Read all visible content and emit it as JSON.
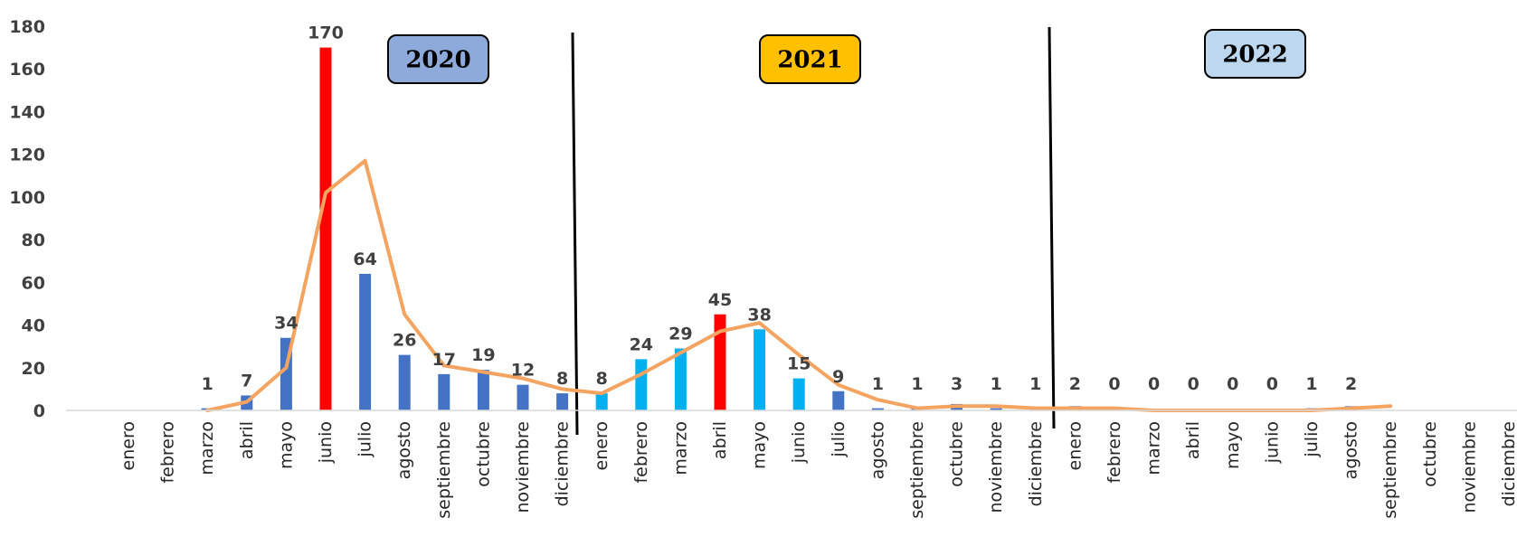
{
  "chart_data": {
    "type": "bar",
    "ylim": [
      0,
      180
    ],
    "yticks": [
      0,
      20,
      40,
      60,
      80,
      100,
      120,
      140,
      160,
      180
    ],
    "categories": [
      "enero",
      "febrero",
      "marzo",
      "abril",
      "mayo",
      "junio",
      "julio",
      "agosto",
      "septiembre",
      "octubre",
      "noviembre",
      "diciembre",
      "enero",
      "febrero",
      "marzo",
      "abril",
      "mayo",
      "junio",
      "julio",
      "agosto",
      "septiembre",
      "octubre",
      "noviembre",
      "diciembre",
      "enero",
      "febrero",
      "marzo",
      "abril",
      "mayo",
      "junio",
      "julio",
      "agosto",
      "septiembre",
      "octubre",
      "noviembre",
      "diciembre"
    ],
    "values": [
      null,
      null,
      1,
      7,
      34,
      170,
      64,
      26,
      17,
      19,
      12,
      8,
      8,
      24,
      29,
      45,
      38,
      15,
      9,
      1,
      1,
      3,
      1,
      1,
      2,
      0,
      0,
      0,
      0,
      0,
      1,
      2,
      null,
      null,
      null,
      null
    ],
    "bar_colors": [
      "#4472c4",
      "#4472c4",
      "#4472c4",
      "#4472c4",
      "#4472c4",
      "#ff0000",
      "#4472c4",
      "#4472c4",
      "#4472c4",
      "#4472c4",
      "#4472c4",
      "#4472c4",
      "#00b0f0",
      "#00b0f0",
      "#00b0f0",
      "#ff0000",
      "#00b0f0",
      "#00b0f0",
      "#4472c4",
      "#4472c4",
      "#4472c4",
      "#4472c4",
      "#4472c4",
      "#4472c4",
      "#4472c4",
      "#4472c4",
      "#4472c4",
      "#4472c4",
      "#4472c4",
      "#4472c4",
      "#4472c4",
      "#4472c4",
      "#4472c4",
      "#4472c4",
      "#4472c4",
      "#4472c4"
    ],
    "trend_line": {
      "color": "#f4a460",
      "values": [
        null,
        null,
        0,
        4,
        20,
        102,
        117,
        45,
        21,
        18,
        15,
        10,
        8,
        17,
        27,
        37,
        41,
        26,
        12,
        5,
        1,
        2,
        2,
        1,
        1,
        1,
        0,
        0,
        0,
        0,
        0,
        1,
        2,
        null,
        null,
        null
      ]
    },
    "year_labels": [
      {
        "label": "2020",
        "fill": "#8eaadb"
      },
      {
        "label": "2021",
        "fill": "#ffc000"
      },
      {
        "label": "2022",
        "fill": "#bdd7ee"
      }
    ],
    "grid": false
  }
}
